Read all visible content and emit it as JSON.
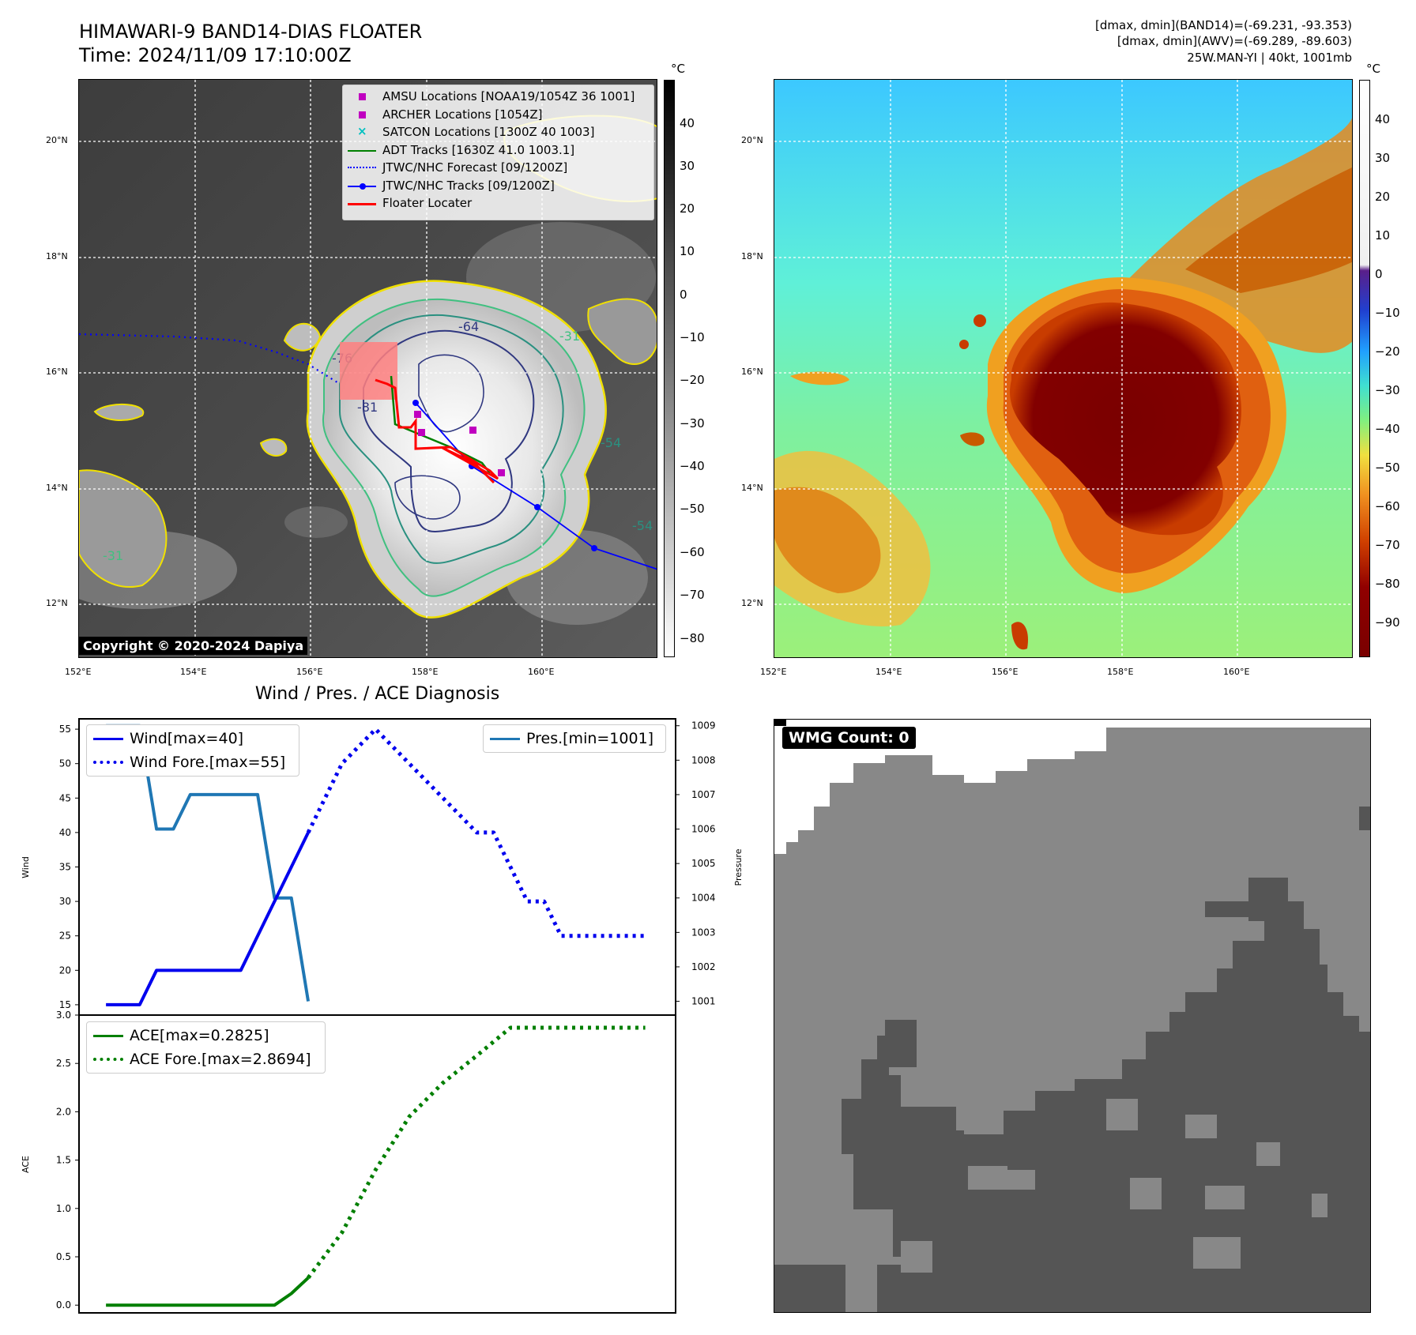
{
  "header": {
    "title_line1": "HIMAWARI-9 BAND14-DIAS FLOATER",
    "title_line2": "Time: 2024/11/09 17:10:00Z",
    "info_line1": "[dmax, dmin](BAND14)=(-69.231, -93.353)",
    "info_line2": "[dmax, dmin](AWV)=(-69.289, -89.603)",
    "info_line3": "25W.MAN-YI | 40kt, 1001mb"
  },
  "colorbar_unit": "°C",
  "colorbar_left_ticks": [
    "40",
    "30",
    "20",
    "10",
    "0",
    "−10",
    "−20",
    "−30",
    "−40",
    "−50",
    "−60",
    "−70",
    "−80"
  ],
  "colorbar_right_ticks": [
    "40",
    "30",
    "20",
    "10",
    "0",
    "−10",
    "−20",
    "−30",
    "−40",
    "−50",
    "−60",
    "−70",
    "−80",
    "−90"
  ],
  "lon_labels": [
    "152°E",
    "154°E",
    "156°E",
    "158°E",
    "160°E"
  ],
  "lat_labels": [
    "20°N",
    "18°N",
    "16°N",
    "14°N",
    "12°N"
  ],
  "copyright": "Copyright © 2020-2024 Dapiya",
  "map_legend": [
    {
      "label": "AMSU Locations [NOAA19/1054Z 36 1001]",
      "color": "#c000c0",
      "marker": "square"
    },
    {
      "label": "ARCHER Locations [1054Z]",
      "color": "#c000c0",
      "marker": "square"
    },
    {
      "label": "SATCON Locations [1300Z 40 1003]",
      "color": "#00c0c0",
      "marker": "x"
    },
    {
      "label": "ADT Tracks [1630Z 41.0 1003.1]",
      "color": "#008000",
      "marker": "line"
    },
    {
      "label": "JTWC/NHC Forecast [09/1200Z]",
      "color": "#0000ff",
      "marker": "dotted"
    },
    {
      "label": "JTWC/NHC Tracks [09/1200Z]",
      "color": "#0000ff",
      "marker": "line-dot"
    },
    {
      "label": "Floater Locater",
      "color": "#ff0000",
      "marker": "line"
    }
  ],
  "contour_labels": [
    "-64",
    "-31",
    "-76",
    "-81",
    "-54",
    "-31",
    "-54"
  ],
  "diagnosis_title": "Wind / Pres. / ACE Diagnosis",
  "wmg_label": "WMG Count: 0",
  "colors": {
    "wind": "#0000ee",
    "pressure": "#1f77b4",
    "ace": "#007f00",
    "track": "#0000ff",
    "floater": "#ff0000"
  },
  "chart_data": [
    {
      "type": "line",
      "title": "Wind / Pres. / ACE Diagnosis",
      "ylabel": "Wind",
      "ylabel_right": "Pressure",
      "ylim": [
        13.5,
        56.5
      ],
      "ylim_right": [
        1000.6,
        1009.2
      ],
      "y_ticks": [
        15,
        20,
        25,
        30,
        35,
        40,
        45,
        50,
        55
      ],
      "y_ticks_right": [
        1001,
        1002,
        1003,
        1004,
        1005,
        1006,
        1007,
        1008,
        1009
      ],
      "x": [
        0,
        1,
        2,
        3,
        4,
        5,
        6,
        7,
        8,
        9,
        10,
        11,
        12,
        13,
        14,
        15,
        16,
        17,
        18,
        19,
        20,
        21,
        22,
        23,
        24,
        25,
        26,
        27,
        28,
        29,
        30,
        31,
        32
      ],
      "xlim": [
        -1.6,
        33.8
      ],
      "series": [
        {
          "name": "Wind[max=40]",
          "style": "solid",
          "axis": "left",
          "x": [
            0,
            2,
            3,
            4,
            5,
            6,
            7,
            8,
            9,
            10,
            11,
            12
          ],
          "values": [
            15,
            15,
            20,
            20,
            20,
            20,
            20,
            20,
            25,
            30,
            35,
            40
          ]
        },
        {
          "name": "Wind Fore.[max=55]",
          "style": "dotted",
          "axis": "left",
          "x": [
            12,
            14,
            16,
            18,
            20,
            22,
            23,
            24,
            25,
            26,
            27,
            28,
            29,
            30,
            31,
            32
          ],
          "values": [
            40,
            50,
            55,
            50,
            45,
            40,
            40,
            35,
            30,
            30,
            25,
            25,
            25,
            25,
            25,
            25
          ]
        },
        {
          "name": "Pres.[min=1001]",
          "style": "solid",
          "axis": "right",
          "x": [
            0,
            2,
            3,
            4,
            5,
            6,
            7,
            8,
            9,
            10,
            11,
            12
          ],
          "values": [
            1009,
            1009,
            1006,
            1006,
            1007,
            1007,
            1007,
            1007,
            1007,
            1004,
            1004,
            1001
          ]
        }
      ]
    },
    {
      "type": "line",
      "ylabel": "ACE",
      "ylim": [
        -0.08,
        3.0
      ],
      "y_ticks": [
        "0.0",
        "0.5",
        "1.0",
        "1.5",
        "2.0",
        "2.5",
        "3.0"
      ],
      "xlim": [
        -1.6,
        33.8
      ],
      "series": [
        {
          "name": "ACE[max=0.2825]",
          "style": "solid",
          "x": [
            0,
            2,
            4,
            6,
            8,
            10,
            11,
            12
          ],
          "values": [
            0,
            0,
            0,
            0,
            0,
            0,
            0.12,
            0.2825
          ]
        },
        {
          "name": "ACE Fore.[max=2.8694]",
          "style": "dotted",
          "x": [
            12,
            14,
            16,
            18,
            20,
            22,
            24,
            25,
            26,
            28,
            30,
            32
          ],
          "values": [
            0.2825,
            0.75,
            1.4,
            1.95,
            2.3,
            2.58,
            2.8694,
            2.8694,
            2.8694,
            2.8694,
            2.8694,
            2.8694
          ]
        }
      ]
    }
  ]
}
